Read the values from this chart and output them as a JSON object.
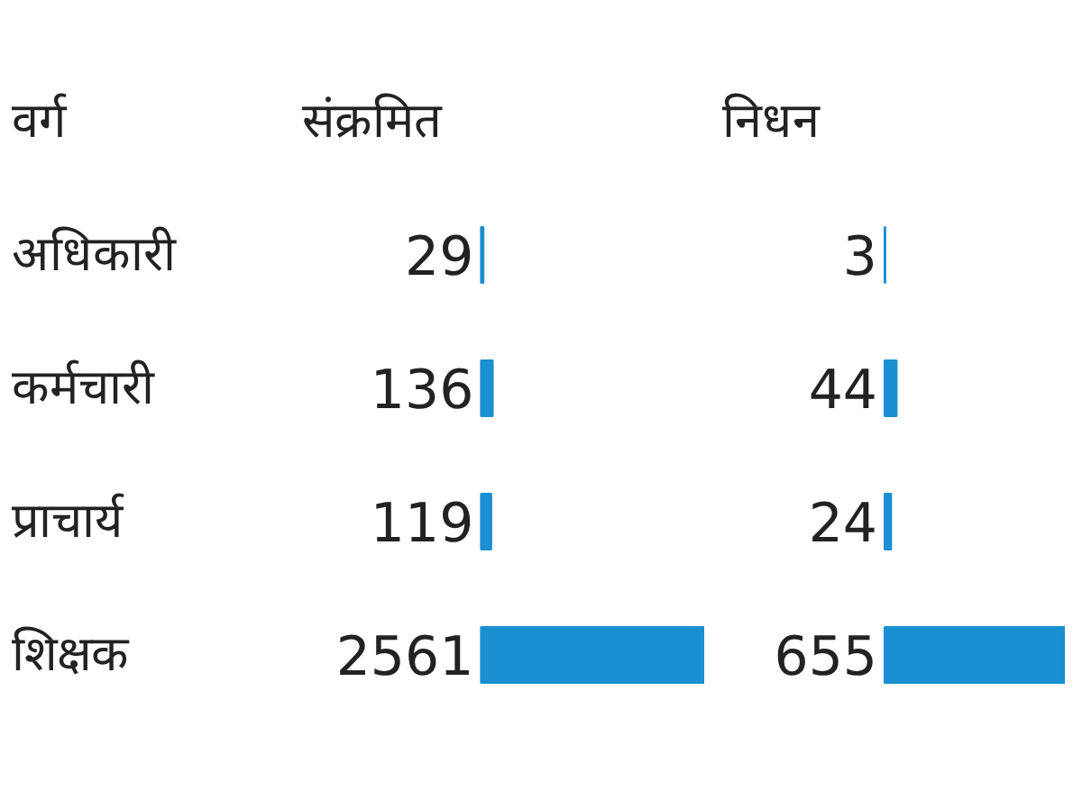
{
  "chart_data": [
    {
      "type": "bar",
      "orientation": "horizontal",
      "title": "संक्रमित",
      "ylabel": "वर्ग",
      "categories": [
        "अधिकारी",
        "कर्मचारी",
        "प्राचार्य",
        "शिक्षक"
      ],
      "values": [
        29,
        136,
        119,
        2561
      ],
      "color": "#1a8fd1",
      "data_labels": true
    },
    {
      "type": "bar",
      "orientation": "horizontal",
      "title": "निधन",
      "categories": [
        null,
        null,
        null,
        null
      ],
      "values": [
        3,
        44,
        24,
        655
      ],
      "color": "#1a8fd1",
      "data_labels": true,
      "tick_labels": false
    }
  ]
}
